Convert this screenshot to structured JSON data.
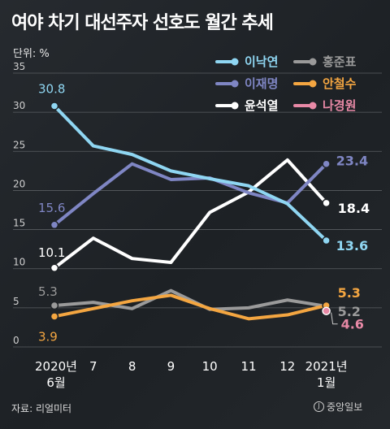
{
  "title": "여야 차기 대선주자 선호도 월간 추세",
  "unit": "단위: %",
  "source": "자료: 리얼미터",
  "logo_text": "중앙일보",
  "colors": {
    "이낙연": "#8fd6f2",
    "이재명": "#7f86c4",
    "윤석열": "#ffffff",
    "홍준표": "#9a9a9a",
    "안철수": "#f4a641",
    "나경원": "#e889a6",
    "grid": "#5a5e62",
    "axis_text": "#cfcfcf"
  },
  "legend": [
    {
      "name": "이낙연"
    },
    {
      "name": "홍준표"
    },
    {
      "name": "이재명"
    },
    {
      "name": "안철수"
    },
    {
      "name": "윤석열"
    },
    {
      "name": "나경원"
    }
  ],
  "chart_data": {
    "type": "line",
    "categories": [
      "2020년 6월",
      "7",
      "8",
      "9",
      "10",
      "11",
      "12",
      "2021년 1월"
    ],
    "x_tick_lines": [
      [
        "2020년",
        "6월"
      ],
      [
        "7"
      ],
      [
        "8"
      ],
      [
        "9"
      ],
      [
        "10"
      ],
      [
        "11"
      ],
      [
        "12"
      ],
      [
        "2021년",
        "1월"
      ]
    ],
    "ylim": [
      0,
      35
    ],
    "yticks": [
      0,
      5,
      10,
      15,
      20,
      25,
      30,
      35
    ],
    "grid": true,
    "legend_position": "top-right",
    "series": [
      {
        "name": "이낙연",
        "values": [
          30.8,
          25.7,
          24.6,
          22.5,
          21.5,
          20.6,
          18.3,
          13.6
        ],
        "end_label": "13.6",
        "start_label": "30.8"
      },
      {
        "name": "이재명",
        "values": [
          15.6,
          19.6,
          23.4,
          21.4,
          21.6,
          19.7,
          18.4,
          23.4
        ],
        "end_label": "23.4",
        "start_label": "15.6"
      },
      {
        "name": "윤석열",
        "values": [
          10.1,
          13.9,
          11.3,
          10.8,
          17.2,
          19.8,
          23.9,
          18.4
        ],
        "end_label": "18.4",
        "start_label": "10.1"
      },
      {
        "name": "홍준표",
        "values": [
          5.3,
          5.7,
          4.9,
          7.2,
          4.8,
          5.0,
          6.0,
          5.2
        ],
        "end_label": "5.2",
        "start_label": "5.3"
      },
      {
        "name": "안철수",
        "values": [
          3.9,
          4.9,
          5.9,
          6.6,
          4.9,
          3.6,
          4.1,
          5.3
        ],
        "end_label": "5.3",
        "start_label": "3.9"
      },
      {
        "name": "나경원",
        "values": [
          null,
          null,
          null,
          null,
          null,
          null,
          null,
          4.6
        ],
        "end_label": "4.6",
        "start_label": ""
      }
    ]
  }
}
